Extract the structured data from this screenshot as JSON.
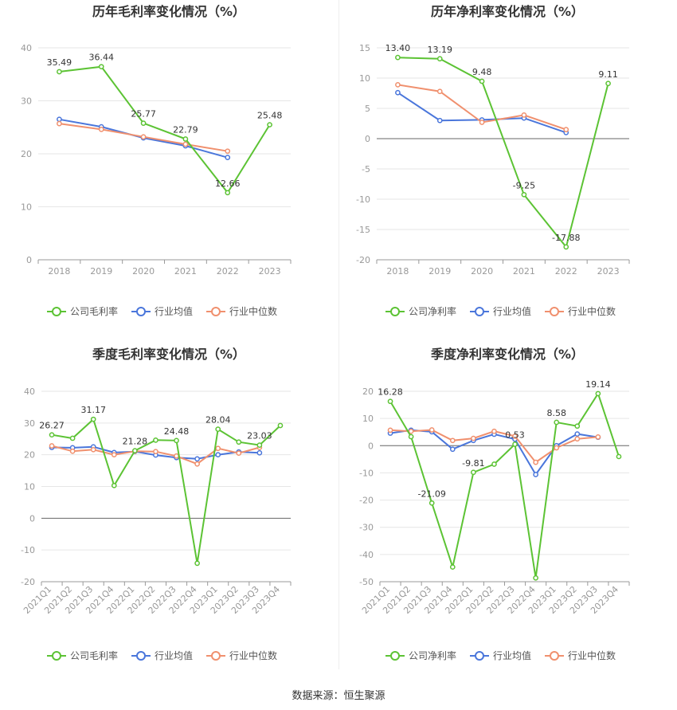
{
  "colors": {
    "company": "#5cc334",
    "avg": "#4a76db",
    "median": "#f0906e"
  },
  "source_text": "数据来源：恒生聚源",
  "chart_data": [
    {
      "type": "line",
      "title": "历年毛利率变化情况（%）",
      "categories": [
        "2018",
        "2019",
        "2020",
        "2021",
        "2022",
        "2023"
      ],
      "ylim": [
        0,
        40
      ],
      "yticks": [
        0,
        10,
        20,
        30,
        40
      ],
      "rotate_x": false,
      "series": [
        {
          "name": "公司毛利率",
          "key": "company",
          "values": [
            35.49,
            36.44,
            25.77,
            22.79,
            12.66,
            25.48
          ]
        },
        {
          "name": "行业均值",
          "key": "avg",
          "values": [
            26.5,
            25.1,
            23.0,
            21.5,
            19.3,
            null
          ]
        },
        {
          "name": "行业中位数",
          "key": "median",
          "values": [
            25.7,
            24.6,
            23.2,
            21.8,
            20.5,
            null
          ]
        }
      ],
      "data_labels": [
        {
          "i": 0,
          "text": "35.49"
        },
        {
          "i": 1,
          "text": "36.44"
        },
        {
          "i": 2,
          "text": "25.77"
        },
        {
          "i": 3,
          "text": "22.79"
        },
        {
          "i": 4,
          "text": "12.66"
        },
        {
          "i": 5,
          "text": "25.48"
        }
      ]
    },
    {
      "type": "line",
      "title": "历年净利率变化情况（%）",
      "categories": [
        "2018",
        "2019",
        "2020",
        "2021",
        "2022",
        "2023"
      ],
      "ylim": [
        -20,
        15
      ],
      "yticks": [
        -20,
        -15,
        -10,
        -5,
        0,
        5,
        10,
        15
      ],
      "rotate_x": false,
      "series": [
        {
          "name": "公司净利率",
          "key": "company",
          "values": [
            13.4,
            13.19,
            9.48,
            -9.25,
            -17.88,
            9.11
          ]
        },
        {
          "name": "行业均值",
          "key": "avg",
          "values": [
            7.6,
            3.0,
            3.1,
            3.4,
            1.0,
            null
          ]
        },
        {
          "name": "行业中位数",
          "key": "median",
          "values": [
            8.9,
            7.8,
            2.7,
            3.9,
            1.5,
            null
          ]
        }
      ],
      "data_labels": [
        {
          "i": 0,
          "text": "13.40"
        },
        {
          "i": 1,
          "text": "13.19"
        },
        {
          "i": 2,
          "text": "9.48"
        },
        {
          "i": 3,
          "text": "-9.25"
        },
        {
          "i": 4,
          "text": "-17.88"
        },
        {
          "i": 5,
          "text": "9.11"
        }
      ]
    },
    {
      "type": "line",
      "title": "季度毛利率变化情况（%）",
      "categories": [
        "2021Q1",
        "2021Q2",
        "2021Q3",
        "2021Q4",
        "2022Q1",
        "2022Q2",
        "2022Q3",
        "2022Q4",
        "2023Q1",
        "2023Q2",
        "2023Q3",
        "2023Q4"
      ],
      "ylim": [
        -20,
        40
      ],
      "yticks": [
        -20,
        -10,
        0,
        10,
        20,
        30,
        40
      ],
      "rotate_x": true,
      "series": [
        {
          "name": "公司毛利率",
          "key": "company",
          "values": [
            26.27,
            25.2,
            31.17,
            10.3,
            21.28,
            24.6,
            24.48,
            -14.2,
            28.04,
            24.0,
            23.03,
            29.2
          ]
        },
        {
          "name": "行业均值",
          "key": "avg",
          "values": [
            22.3,
            22.2,
            22.5,
            20.7,
            21.0,
            19.9,
            19.1,
            18.7,
            20.0,
            20.9,
            20.6,
            null
          ]
        },
        {
          "name": "行业中位数",
          "key": "median",
          "values": [
            22.8,
            21.1,
            21.6,
            20.0,
            21.1,
            21.0,
            19.6,
            17.1,
            22.0,
            20.5,
            22.3,
            null
          ]
        }
      ],
      "data_labels": [
        {
          "i": 0,
          "text": "26.27"
        },
        {
          "i": 2,
          "text": "31.17"
        },
        {
          "i": 4,
          "text": "21.28"
        },
        {
          "i": 6,
          "text": "24.48"
        },
        {
          "i": 8,
          "text": "28.04"
        },
        {
          "i": 10,
          "text": "23.03"
        }
      ]
    },
    {
      "type": "line",
      "title": "季度净利率变化情况（%）",
      "categories": [
        "2021Q1",
        "2021Q2",
        "2021Q3",
        "2021Q4",
        "2022Q1",
        "2022Q2",
        "2022Q3",
        "2022Q4",
        "2023Q1",
        "2023Q2",
        "2023Q3",
        "2023Q4"
      ],
      "ylim": [
        -50,
        20
      ],
      "yticks": [
        -50,
        -40,
        -30,
        -20,
        -10,
        0,
        10,
        20
      ],
      "rotate_x": true,
      "series": [
        {
          "name": "公司净利率",
          "key": "company",
          "values": [
            16.28,
            3.3,
            -21.09,
            -44.6,
            -9.81,
            -6.8,
            0.53,
            -48.6,
            8.58,
            7.2,
            19.14,
            -4.0
          ]
        },
        {
          "name": "行业均值",
          "key": "avg",
          "values": [
            4.6,
            5.7,
            5.1,
            -1.3,
            1.9,
            4.2,
            2.4,
            -10.6,
            0.0,
            4.3,
            3.1,
            null
          ]
        },
        {
          "name": "行业中位数",
          "key": "median",
          "values": [
            5.7,
            5.3,
            5.8,
            1.9,
            2.7,
            5.3,
            3.5,
            -6.1,
            -0.8,
            2.5,
            3.2,
            null
          ]
        }
      ],
      "data_labels": [
        {
          "i": 0,
          "text": "16.28"
        },
        {
          "i": 2,
          "text": "-21.09"
        },
        {
          "i": 4,
          "text": "-9.81"
        },
        {
          "i": 6,
          "text": "0.53"
        },
        {
          "i": 8,
          "text": "8.58"
        },
        {
          "i": 10,
          "text": "19.14"
        }
      ]
    }
  ]
}
